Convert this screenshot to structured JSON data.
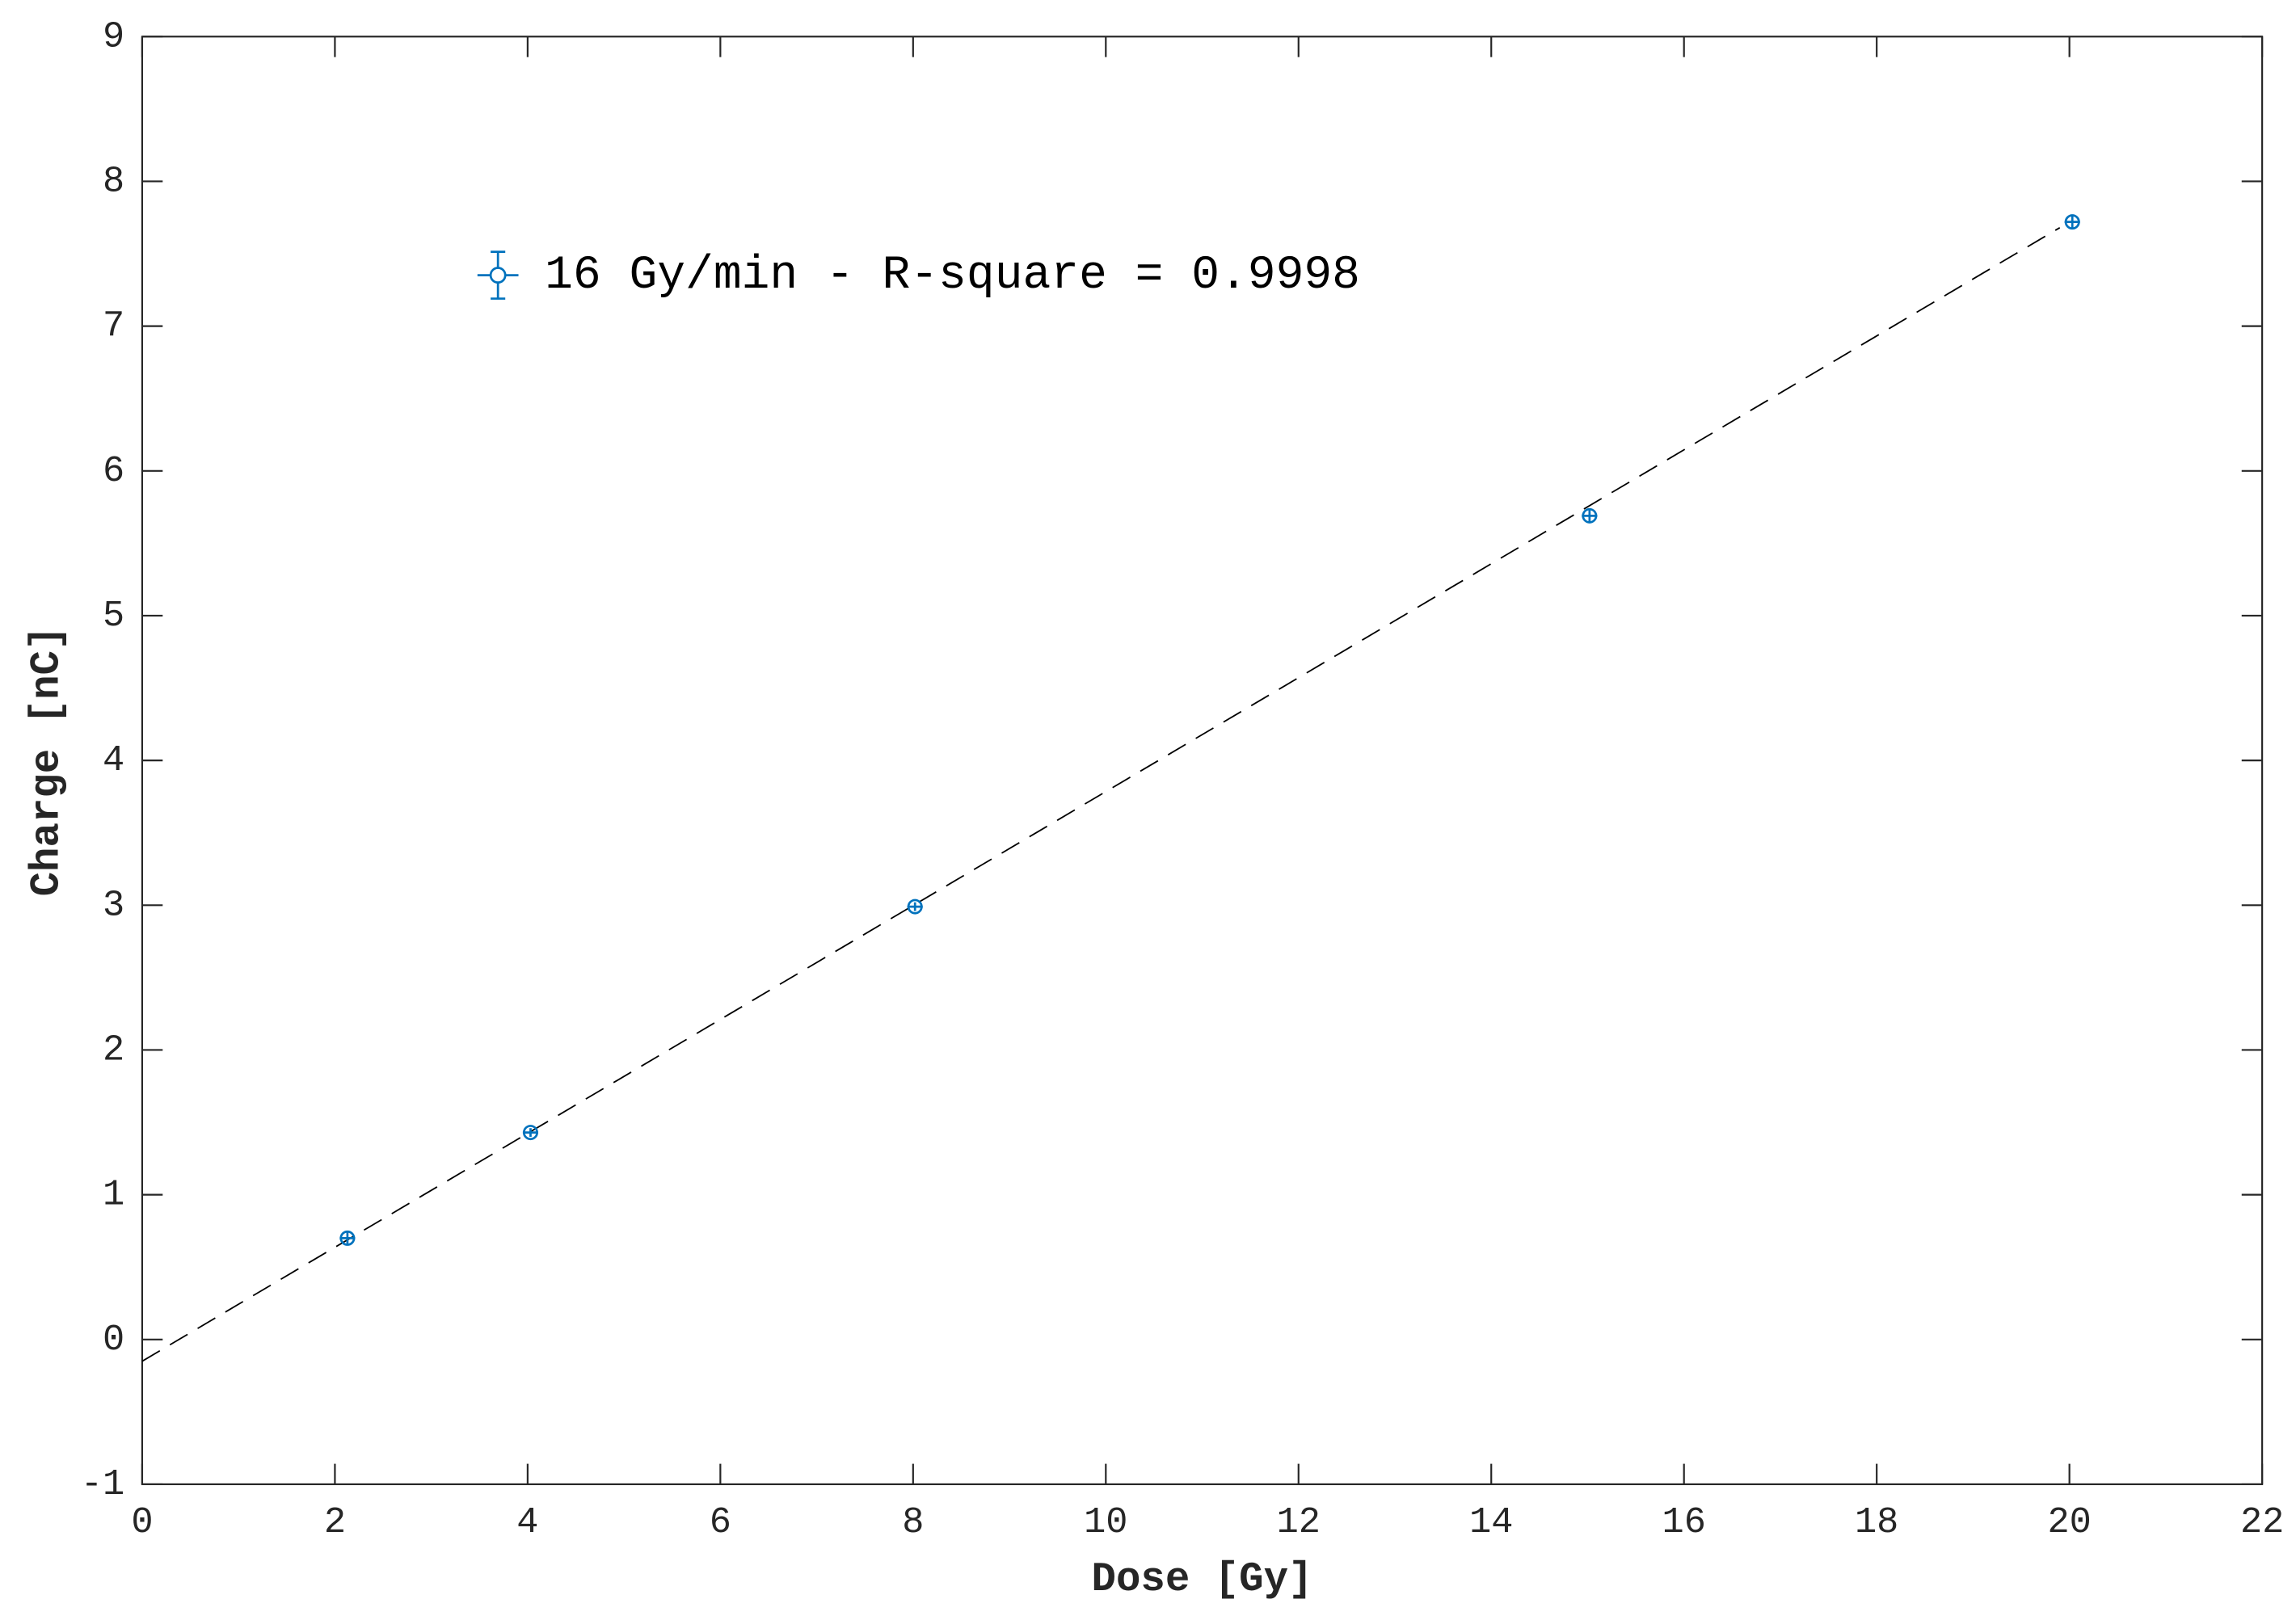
{
  "chart_data": {
    "type": "scatter",
    "xlabel": "Dose [Gy]",
    "ylabel": "Charge [nC]",
    "xlim": [
      0,
      22
    ],
    "xticks": [
      0,
      2,
      4,
      6,
      8,
      10,
      12,
      14,
      16,
      18,
      20,
      22
    ],
    "ylim": [
      -1,
      9
    ],
    "yticks": [
      -1,
      0,
      1,
      2,
      3,
      4,
      5,
      6,
      7,
      8,
      9
    ],
    "grid": false,
    "legend": "upper left",
    "series": [
      {
        "name": "16 Gy/min - R-square = 0.9998",
        "color": "#0072bd",
        "x": [
          2.13,
          4.03,
          8.02,
          15.02,
          20.03
        ],
        "xerr": [
          0.08,
          0.08,
          0.08,
          0.08,
          0.08
        ],
        "values": [
          0.7,
          1.43,
          2.99,
          5.69,
          7.72
        ],
        "yerr": [
          0.04,
          0.03,
          0.03,
          0.04,
          0.05
        ]
      }
    ],
    "fit": {
      "color": "#000000",
      "x": [
        0,
        19.9
      ],
      "values": [
        -0.15,
        7.68
      ]
    }
  }
}
